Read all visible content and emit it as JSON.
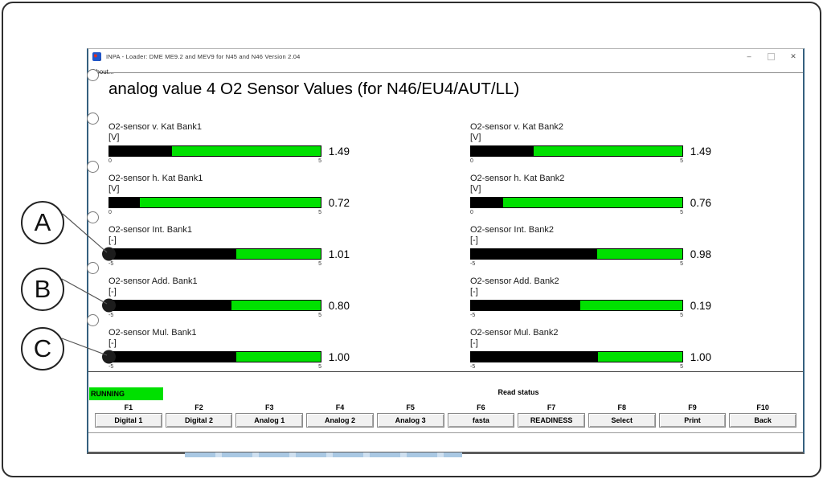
{
  "window": {
    "title": "INPA - Loader:  DME ME9.2 and MEV9 for N45 and N46 Version 2.04",
    "menu_about": "About...",
    "controls": {
      "minimize": "–",
      "close": "✕"
    }
  },
  "heading": "analog value 4 O2 Sensor Values (for N46/EU4/AUT/LL)",
  "sensors": {
    "left": [
      {
        "label": "O2-sensor v. Kat Bank1",
        "unit": "[V]",
        "value": "1.49",
        "num": 1.49,
        "min": 0,
        "max": 5,
        "min_label": "0",
        "max_label": "5",
        "marker": false
      },
      {
        "label": "O2-sensor h. Kat Bank1",
        "unit": "[V]",
        "value": "0.72",
        "num": 0.72,
        "min": 0,
        "max": 5,
        "min_label": "0",
        "max_label": "5",
        "marker": false
      },
      {
        "label": "O2-sensor Int. Bank1",
        "unit": "[-]",
        "value": "1.01",
        "num": 1.01,
        "min": -5,
        "max": 5,
        "min_label": "-5",
        "max_label": "5",
        "marker": true
      },
      {
        "label": "O2-sensor Add. Bank1",
        "unit": "[-]",
        "value": "0.80",
        "num": 0.8,
        "min": -5,
        "max": 5,
        "min_label": "-5",
        "max_label": "5",
        "marker": true
      },
      {
        "label": "O2-sensor Mul. Bank1",
        "unit": "[-]",
        "value": "1.00",
        "num": 1.0,
        "min": -5,
        "max": 5,
        "min_label": "-5",
        "max_label": "5",
        "marker": true
      }
    ],
    "right": [
      {
        "label": "O2-sensor v. Kat Bank2",
        "unit": "[V]",
        "value": "1.49",
        "num": 1.49,
        "min": 0,
        "max": 5,
        "min_label": "0",
        "max_label": "5",
        "marker": false
      },
      {
        "label": "O2-sensor h. Kat Bank2",
        "unit": "[V]",
        "value": "0.76",
        "num": 0.76,
        "min": 0,
        "max": 5,
        "min_label": "0",
        "max_label": "5",
        "marker": false
      },
      {
        "label": "O2-sensor Int. Bank2",
        "unit": "[-]",
        "value": "0.98",
        "num": 0.98,
        "min": -5,
        "max": 5,
        "min_label": "-5",
        "max_label": "5",
        "marker": false
      },
      {
        "label": "O2-sensor Add. Bank2",
        "unit": "[-]",
        "value": "0.19",
        "num": 0.19,
        "min": -5,
        "max": 5,
        "min_label": "-5",
        "max_label": "5",
        "marker": false
      },
      {
        "label": "O2-sensor Mul. Bank2",
        "unit": "[-]",
        "value": "1.00",
        "num": 1.0,
        "min": -5,
        "max": 5,
        "min_label": "-5",
        "max_label": "5",
        "marker": false
      }
    ]
  },
  "statusbar": {
    "running": "RUNNING",
    "read_status": "Read status"
  },
  "function_keys": [
    {
      "key": "F1",
      "label": "Digital 1"
    },
    {
      "key": "F2",
      "label": "Digital 2"
    },
    {
      "key": "F3",
      "label": "Analog 1"
    },
    {
      "key": "F4",
      "label": "Analog 2"
    },
    {
      "key": "F5",
      "label": "Analog 3"
    },
    {
      "key": "F6",
      "label": "fasta"
    },
    {
      "key": "F7",
      "label": "READINESS"
    },
    {
      "key": "F8",
      "label": "Select"
    },
    {
      "key": "F9",
      "label": "Print"
    },
    {
      "key": "F10",
      "label": "Back"
    }
  ],
  "annotations": [
    {
      "label": "A"
    },
    {
      "label": "B"
    },
    {
      "label": "C"
    }
  ],
  "colors": {
    "bar_green": "#00e000",
    "running_green": "#00e000",
    "bar_fill": "#000000"
  }
}
